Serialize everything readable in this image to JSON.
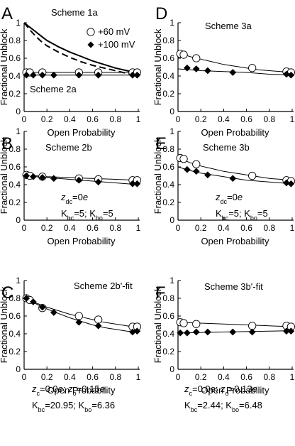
{
  "figure": {
    "panels": [
      "A",
      "B",
      "C",
      "D",
      "E",
      "F"
    ]
  },
  "legend": {
    "entries": [
      {
        "label": "+60 mV",
        "marker": "open-circle"
      },
      {
        "label": "+100 mV",
        "marker": "filled-diamond"
      }
    ]
  },
  "chart_data": [
    {
      "panel": "A",
      "type": "scatter",
      "xlabel": "Open Probability",
      "ylabel": "Fractional Unblock",
      "xlim": [
        0,
        1
      ],
      "ylim": [
        0,
        1
      ],
      "xticks": [
        "0",
        "0.2",
        "0.4",
        "0.6",
        "0.8",
        "1"
      ],
      "yticks": [
        "0",
        "0.2",
        "0.4",
        "0.6",
        "0.8",
        "1"
      ],
      "annotations": [
        "Scheme 1a",
        "Scheme 2a"
      ],
      "series": [
        {
          "name": "+60 mV",
          "marker": "circle",
          "x": [
            0.02,
            0.05,
            0.16,
            0.48,
            0.65,
            0.95,
            0.99
          ],
          "y": [
            0.44,
            0.44,
            0.44,
            0.44,
            0.44,
            0.44,
            0.44
          ]
        },
        {
          "name": "+100 mV",
          "marker": "diamond",
          "x": [
            0.02,
            0.08,
            0.16,
            0.26,
            0.48,
            0.65,
            0.95,
            0.99
          ],
          "y": [
            0.41,
            0.41,
            0.41,
            0.41,
            0.41,
            0.41,
            0.41,
            0.41
          ]
        }
      ],
      "curves": [
        {
          "style": "solid",
          "x": [
            0,
            0.05,
            0.1,
            0.15,
            0.2,
            0.3,
            0.4,
            0.5,
            0.6,
            0.7,
            0.8,
            0.9,
            1.0
          ],
          "y": [
            1.0,
            0.95,
            0.9,
            0.85,
            0.8,
            0.73,
            0.67,
            0.62,
            0.57,
            0.53,
            0.49,
            0.46,
            0.43
          ]
        },
        {
          "style": "dashed",
          "x": [
            0,
            0.05,
            0.1,
            0.15,
            0.2,
            0.3,
            0.4,
            0.5,
            0.6,
            0.7,
            0.8,
            0.9,
            1.0
          ],
          "y": [
            1.0,
            0.92,
            0.85,
            0.79,
            0.74,
            0.67,
            0.61,
            0.56,
            0.52,
            0.49,
            0.46,
            0.43,
            0.41
          ]
        },
        {
          "style": "solid",
          "x": [
            0,
            1
          ],
          "y": [
            0.44,
            0.44
          ]
        },
        {
          "style": "solid",
          "x": [
            0,
            1
          ],
          "y": [
            0.41,
            0.41
          ]
        }
      ]
    },
    {
      "panel": "B",
      "type": "scatter",
      "xlabel": "Open Probability",
      "ylabel": "Fractional Unblock",
      "xlim": [
        0,
        1
      ],
      "ylim": [
        0,
        1
      ],
      "xticks": [
        "0",
        "0.2",
        "0.4",
        "0.6",
        "0.8",
        "1"
      ],
      "yticks": [
        "0",
        "0.2",
        "0.4",
        "0.6",
        "0.8",
        "1"
      ],
      "annotations": [
        "Scheme 2b"
      ],
      "params": [
        {
          "parts": [
            {
              "t": "z",
              "i": true
            },
            {
              "t": "dc",
              "sub": true
            },
            {
              "t": "=0"
            },
            {
              "t": "e",
              "i": true
            }
          ]
        },
        {
          "parts": [
            {
              "t": "K"
            },
            {
              "t": "bc",
              "sub": true
            },
            {
              "t": "=5; K"
            },
            {
              "t": "bo",
              "sub": true
            },
            {
              "t": "=5"
            }
          ]
        }
      ],
      "series": [
        {
          "name": "+60 mV",
          "marker": "circle",
          "x": [
            0.02,
            0.05,
            0.16,
            0.48,
            0.65,
            0.95,
            0.99
          ],
          "y": [
            0.51,
            0.5,
            0.49,
            0.47,
            0.46,
            0.45,
            0.45
          ]
        },
        {
          "name": "+100 mV",
          "marker": "diamond",
          "x": [
            0.02,
            0.08,
            0.16,
            0.26,
            0.48,
            0.65,
            0.95,
            0.99
          ],
          "y": [
            0.5,
            0.49,
            0.48,
            0.47,
            0.45,
            0.43,
            0.41,
            0.41
          ]
        }
      ],
      "curves": [
        {
          "style": "solid",
          "x": [
            0,
            0.2,
            0.4,
            0.6,
            0.8,
            1.0
          ],
          "y": [
            0.51,
            0.49,
            0.48,
            0.47,
            0.46,
            0.45
          ]
        },
        {
          "style": "solid",
          "x": [
            0,
            0.2,
            0.4,
            0.6,
            0.8,
            1.0
          ],
          "y": [
            0.5,
            0.48,
            0.46,
            0.44,
            0.42,
            0.4
          ]
        }
      ]
    },
    {
      "panel": "C",
      "type": "scatter",
      "xlabel": "Open Probability",
      "ylabel": "Fractional Unblock",
      "xlim": [
        0,
        1
      ],
      "ylim": [
        0,
        1
      ],
      "xticks": [
        "0",
        "0.2",
        "0.4",
        "0.6",
        "0.8",
        "1"
      ],
      "yticks": [
        "0",
        "0.2",
        "0.4",
        "0.6",
        "0.8",
        "1"
      ],
      "annotations": [
        "Scheme 2b'-fit"
      ],
      "params": [
        {
          "parts": [
            {
              "t": "z",
              "i": true
            },
            {
              "t": "c",
              "sub": true
            },
            {
              "t": "=0.0"
            },
            {
              "t": "e",
              "i": true
            },
            {
              "t": "; "
            },
            {
              "t": "z",
              "i": true
            },
            {
              "t": "o",
              "sub": true
            },
            {
              "t": "=0.15"
            },
            {
              "t": "e",
              "i": true
            }
          ]
        },
        {
          "parts": [
            {
              "t": "K"
            },
            {
              "t": "bc",
              "sub": true
            },
            {
              "t": "=20.95; K"
            },
            {
              "t": "bo",
              "sub": true
            },
            {
              "t": "=6.36"
            }
          ]
        }
      ],
      "series": [
        {
          "name": "+60 mV",
          "marker": "circle",
          "x": [
            0.02,
            0.05,
            0.16,
            0.48,
            0.65,
            0.95,
            0.99
          ],
          "y": [
            0.8,
            0.78,
            0.69,
            0.6,
            0.56,
            0.48,
            0.48
          ]
        },
        {
          "name": "+100 mV",
          "marker": "diamond",
          "x": [
            0.02,
            0.08,
            0.16,
            0.26,
            0.48,
            0.65,
            0.95,
            0.99
          ],
          "y": [
            0.8,
            0.76,
            0.7,
            0.64,
            0.53,
            0.49,
            0.42,
            0.43
          ]
        }
      ],
      "curves": [
        {
          "style": "solid",
          "x": [
            0,
            0.1,
            0.2,
            0.3,
            0.4,
            0.5,
            0.6,
            0.7,
            0.8,
            0.9,
            1.0
          ],
          "y": [
            0.8,
            0.75,
            0.7,
            0.66,
            0.62,
            0.59,
            0.56,
            0.53,
            0.51,
            0.49,
            0.47
          ]
        },
        {
          "style": "solid",
          "x": [
            0,
            0.1,
            0.2,
            0.3,
            0.4,
            0.5,
            0.6,
            0.7,
            0.8,
            0.9,
            1.0
          ],
          "y": [
            0.8,
            0.74,
            0.68,
            0.63,
            0.58,
            0.54,
            0.5,
            0.47,
            0.45,
            0.43,
            0.42
          ]
        }
      ]
    },
    {
      "panel": "D",
      "type": "scatter",
      "xlabel": "Open Probability",
      "ylabel": "Fractional Unblock",
      "xlim": [
        0,
        1
      ],
      "ylim": [
        0,
        1
      ],
      "xticks": [
        "0",
        "0.2",
        "0.4",
        "0.6",
        "0.8",
        "1"
      ],
      "yticks": [
        "0",
        "0.2",
        "0.4",
        "0.6",
        "0.8",
        "1"
      ],
      "annotations": [
        "Scheme 3a"
      ],
      "series": [
        {
          "name": "+60 mV",
          "marker": "circle",
          "x": [
            0.02,
            0.05,
            0.16,
            0.65,
            0.95,
            0.99
          ],
          "y": [
            0.65,
            0.64,
            0.6,
            0.49,
            0.45,
            0.44
          ]
        },
        {
          "name": "+100 mV",
          "marker": "diamond",
          "x": [
            0.08,
            0.16,
            0.26,
            0.48,
            0.95,
            0.99
          ],
          "y": [
            0.49,
            0.48,
            0.46,
            0.44,
            0.42,
            0.41
          ]
        }
      ],
      "curves": [
        {
          "style": "solid",
          "x": [
            0,
            0.1,
            0.2,
            0.3,
            0.4,
            0.5,
            0.6,
            0.7,
            0.8,
            0.9,
            1.0
          ],
          "y": [
            0.67,
            0.62,
            0.59,
            0.56,
            0.53,
            0.51,
            0.49,
            0.47,
            0.46,
            0.45,
            0.44
          ]
        },
        {
          "style": "solid",
          "x": [
            0,
            0.2,
            0.4,
            0.6,
            0.8,
            1.0
          ],
          "y": [
            0.48,
            0.46,
            0.45,
            0.44,
            0.42,
            0.41
          ]
        }
      ]
    },
    {
      "panel": "E",
      "type": "scatter",
      "xlabel": "Open Probability",
      "ylabel": "Fractional Unblock",
      "xlim": [
        0,
        1
      ],
      "ylim": [
        0,
        1
      ],
      "xticks": [
        "0",
        "0.2",
        "0.4",
        "0.6",
        "0.8",
        "1"
      ],
      "yticks": [
        "0",
        "0.2",
        "0.4",
        "0.6",
        "0.8",
        "1"
      ],
      "annotations": [
        "Scheme 3b"
      ],
      "params": [
        {
          "parts": [
            {
              "t": "z",
              "i": true
            },
            {
              "t": "dc",
              "sub": true
            },
            {
              "t": "=0"
            },
            {
              "t": "e",
              "i": true
            }
          ]
        },
        {
          "parts": [
            {
              "t": "K"
            },
            {
              "t": "bc",
              "sub": true
            },
            {
              "t": "=5; K"
            },
            {
              "t": "bo",
              "sub": true
            },
            {
              "t": "=5"
            }
          ]
        }
      ],
      "series": [
        {
          "name": "+60 mV",
          "marker": "circle",
          "x": [
            0.02,
            0.05,
            0.16,
            0.65,
            0.95,
            0.99
          ],
          "y": [
            0.7,
            0.69,
            0.63,
            0.5,
            0.45,
            0.44
          ]
        },
        {
          "name": "+100 mV",
          "marker": "diamond",
          "x": [
            0.08,
            0.16,
            0.26,
            0.48,
            0.95,
            0.99
          ],
          "y": [
            0.57,
            0.55,
            0.51,
            0.47,
            0.42,
            0.41
          ]
        }
      ],
      "curves": [
        {
          "style": "solid",
          "x": [
            0,
            0.1,
            0.2,
            0.3,
            0.4,
            0.5,
            0.6,
            0.7,
            0.8,
            0.9,
            1.0
          ],
          "y": [
            0.71,
            0.65,
            0.61,
            0.58,
            0.55,
            0.53,
            0.51,
            0.49,
            0.47,
            0.46,
            0.45
          ]
        },
        {
          "style": "solid",
          "x": [
            0,
            0.1,
            0.2,
            0.3,
            0.4,
            0.5,
            0.6,
            0.7,
            0.8,
            0.9,
            1.0
          ],
          "y": [
            0.6,
            0.56,
            0.53,
            0.51,
            0.49,
            0.47,
            0.45,
            0.44,
            0.43,
            0.42,
            0.41
          ]
        }
      ]
    },
    {
      "panel": "F",
      "type": "scatter",
      "xlabel": "Open Probability",
      "ylabel": "Fractional Unblock",
      "xlim": [
        0,
        1
      ],
      "ylim": [
        0,
        1
      ],
      "xticks": [
        "0",
        "0.2",
        "0.4",
        "0.6",
        "0.8",
        "1"
      ],
      "yticks": [
        "0",
        "0.2",
        "0.4",
        "0.6",
        "0.8",
        "1"
      ],
      "annotations": [
        "Scheme 3b'-fit"
      ],
      "params": [
        {
          "parts": [
            {
              "t": "z",
              "i": true
            },
            {
              "t": "c",
              "sub": true
            },
            {
              "t": "=0.0"
            },
            {
              "t": "e",
              "i": true
            },
            {
              "t": "; "
            },
            {
              "t": "z",
              "i": true
            },
            {
              "t": "o",
              "sub": true
            },
            {
              "t": "=0.13"
            },
            {
              "t": "e",
              "i": true
            }
          ]
        },
        {
          "parts": [
            {
              "t": "K"
            },
            {
              "t": "bc",
              "sub": true
            },
            {
              "t": "=2.44; K"
            },
            {
              "t": "bo",
              "sub": true
            },
            {
              "t": "=6.48"
            }
          ]
        }
      ],
      "series": [
        {
          "name": "+60 mV",
          "marker": "circle",
          "x": [
            0.02,
            0.05,
            0.16,
            0.65,
            0.95,
            0.99
          ],
          "y": [
            0.53,
            0.52,
            0.51,
            0.49,
            0.49,
            0.48
          ]
        },
        {
          "name": "+100 mV",
          "marker": "diamond",
          "x": [
            0.02,
            0.08,
            0.16,
            0.26,
            0.48,
            0.65,
            0.95,
            0.99
          ],
          "y": [
            0.41,
            0.41,
            0.42,
            0.42,
            0.42,
            0.42,
            0.43,
            0.43
          ]
        }
      ],
      "curves": [
        {
          "style": "solid",
          "x": [
            0,
            0.2,
            0.4,
            0.6,
            0.8,
            1.0
          ],
          "y": [
            0.53,
            0.52,
            0.51,
            0.5,
            0.49,
            0.48
          ]
        },
        {
          "style": "solid",
          "x": [
            0,
            0.2,
            0.4,
            0.6,
            0.8,
            1.0
          ],
          "y": [
            0.41,
            0.415,
            0.42,
            0.425,
            0.43,
            0.435
          ]
        }
      ]
    }
  ]
}
